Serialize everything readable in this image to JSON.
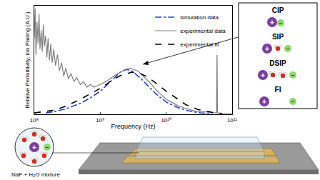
{
  "chart_data": {
    "type": "line",
    "y_label": "Relative Permittivity, Ion Pairing (A.U.)",
    "x_label": "Frequency (Hz)",
    "log": "x",
    "xlim": [
      100000000.0,
      100000000000.0
    ],
    "xticks": [
      {
        "value": 100000000.0,
        "label": "10⁸"
      },
      {
        "value": 1000000000.0,
        "label": "10⁹"
      },
      {
        "value": 10000000000.0,
        "label": "10¹⁰"
      },
      {
        "value": 100000000000.0,
        "label": "10¹¹"
      }
    ],
    "ylim": [
      0,
      4
    ],
    "tick_labels": "x",
    "grid": false,
    "legend": "upper right",
    "series": [
      {
        "name": "simulation data",
        "color": "#2b3fc4",
        "line_style": "dashdot",
        "x": [
          150000000.0,
          200000000.0,
          300000000.0,
          500000000.0,
          700000000.0,
          1000000000.0,
          1500000000.0,
          2000000000.0,
          2500000000.0,
          3000000000.0,
          4000000000.0,
          5000000000.0,
          7000000000.0,
          10000000000.0,
          15000000000.0,
          20000000000.0,
          30000000000.0,
          50000000000.0
        ],
        "values": [
          0.05,
          0.1,
          0.2,
          0.4,
          0.6,
          0.85,
          1.25,
          1.55,
          1.65,
          1.6,
          1.35,
          1.1,
          0.75,
          0.45,
          0.25,
          0.15,
          0.06,
          0.02
        ]
      },
      {
        "name": "experimental data",
        "color": "#808080",
        "line_style": "solid",
        "x": [
          100000000.0,
          103000000.0,
          106000000.0,
          110000000.0,
          114000000.0,
          118000000.0,
          122000000.0,
          127000000.0,
          132000000.0,
          137000000.0,
          142000000.0,
          148000000.0,
          155000000.0,
          162000000.0,
          170000000.0,
          178000000.0,
          187000000.0,
          197000000.0,
          210000000.0,
          225000000.0,
          240000000.0,
          260000000.0,
          280000000.0,
          300000000.0,
          330000000.0,
          360000000.0,
          400000000.0,
          440000000.0,
          500000000.0,
          560000000.0,
          630000000.0,
          710000000.0,
          800000000.0,
          900000000.0,
          1000000000.0,
          1200000000.0,
          1400000000.0,
          1700000000.0,
          2000000000.0,
          2400000000.0,
          2800000000.0,
          3200000000.0,
          3700000000.0,
          4300000000.0,
          5000000000.0,
          6000000000.0,
          7000000000.0,
          8500000000.0,
          10000000000.0,
          12000000000.0,
          15000000000.0,
          18000000000.0,
          22000000000.0,
          27000000000.0,
          33000000000.0,
          40000000000.0,
          50000000000.0,
          58000000000.0,
          59000000000.0,
          60000000000.0,
          70000000000.0,
          85000000000.0,
          100000000000.0
        ],
        "values": [
          2.8,
          3.9,
          2.2,
          3.4,
          2.6,
          3.7,
          2.4,
          3.1,
          2.3,
          3.3,
          2.5,
          2.9,
          2.1,
          2.8,
          2.0,
          2.6,
          1.9,
          2.4,
          1.8,
          2.2,
          1.6,
          1.9,
          1.4,
          1.7,
          1.3,
          1.5,
          1.2,
          1.35,
          1.1,
          1.2,
          1.0,
          1.1,
          1.0,
          1.05,
          1.1,
          1.2,
          1.3,
          1.45,
          1.55,
          1.65,
          1.7,
          1.65,
          1.6,
          1.45,
          1.3,
          1.1,
          0.9,
          0.7,
          0.55,
          0.45,
          0.32,
          0.25,
          0.18,
          0.12,
          0.1,
          0.08,
          0.06,
          0.05,
          2.4,
          0.05,
          0.04,
          0.03,
          0.02
        ]
      },
      {
        "name": "experimental fit",
        "color": "#000000",
        "line_style": "dash",
        "x": [
          100000000.0,
          150000000.0,
          200000000.0,
          300000000.0,
          500000000.0,
          700000000.0,
          1000000000.0,
          1500000000.0,
          2000000000.0,
          3000000000.0,
          4000000000.0,
          5000000000.0,
          7000000000.0,
          10000000000.0,
          15000000000.0,
          20000000000.0,
          30000000000.0,
          50000000000.0,
          70000000000.0
        ],
        "values": [
          0.05,
          0.1,
          0.15,
          0.3,
          0.55,
          0.75,
          0.95,
          1.25,
          1.42,
          1.55,
          1.5,
          1.4,
          1.15,
          0.85,
          0.55,
          0.35,
          0.18,
          0.07,
          0.03
        ]
      }
    ]
  },
  "ion_pairs": {
    "cation_sign": "+",
    "anion_sign": "−",
    "labels": [
      "CIP",
      "SIP",
      "DSIP",
      "FI"
    ]
  },
  "device": {
    "label": "NaF + H₂O mixture"
  }
}
